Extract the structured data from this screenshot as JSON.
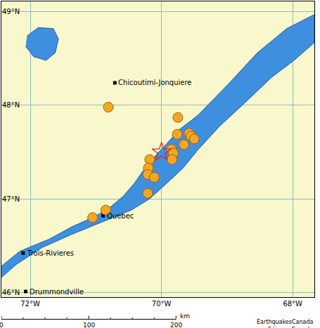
{
  "chart_data": {
    "type": "map",
    "xlim": [
      -72.44,
      -67.67
    ],
    "ylim": [
      45.95,
      49.11
    ],
    "xticks": [
      {
        "value": -72,
        "label": "72°W"
      },
      {
        "value": -70,
        "label": "70°W"
      },
      {
        "value": -68,
        "label": "68°W"
      }
    ],
    "yticks": [
      {
        "value": 46,
        "label": "46°N"
      },
      {
        "value": 47,
        "label": "47°N"
      },
      {
        "value": 48,
        "label": "48°N"
      },
      {
        "value": 49,
        "label": "49°N"
      }
    ],
    "grid": true,
    "water": [
      {
        "color": "#3f8fdf",
        "lon": [
          -72.44,
          -72.16,
          -71.71,
          -71.37,
          -71.02,
          -70.8,
          -70.58,
          -70.41,
          -70.29,
          -70.12,
          -69.92,
          -69.73,
          -69.45,
          -68.99,
          -68.54,
          -68.09,
          -67.67,
          -67.67,
          -67.98,
          -68.32,
          -68.77,
          -69.11,
          -69.45,
          -69.67,
          -69.9,
          -70.18,
          -70.46,
          -70.75,
          -71.02,
          -71.37,
          -71.82,
          -72.21,
          -72.44
        ],
        "lat": [
          46.28,
          46.44,
          46.57,
          46.7,
          46.81,
          46.9,
          47.03,
          47.17,
          47.29,
          47.44,
          47.59,
          47.74,
          47.89,
          48.22,
          48.56,
          48.82,
          48.97,
          48.67,
          48.48,
          48.3,
          48.0,
          47.78,
          47.52,
          47.33,
          47.18,
          47.0,
          46.88,
          46.8,
          46.72,
          46.62,
          46.48,
          46.3,
          46.16
        ]
      },
      {
        "color": "#3f8fdf",
        "lon": [
          -72.05,
          -71.88,
          -71.65,
          -71.57,
          -71.62,
          -71.76,
          -71.95,
          -72.07
        ],
        "lat": [
          48.74,
          48.83,
          48.82,
          48.71,
          48.56,
          48.48,
          48.52,
          48.63
        ]
      }
    ],
    "earthquakes": {
      "color": "#f5a623",
      "marker": "circle",
      "lon": [
        -70.81,
        -69.75,
        -69.76,
        -69.58,
        -69.55,
        -69.5,
        -69.66,
        -69.85,
        -69.82,
        -69.84,
        -70.18,
        -70.2,
        -70.21,
        -70.11,
        -70.21,
        -70.85,
        -71.05
      ],
      "lat": [
        47.98,
        47.87,
        47.69,
        47.7,
        47.67,
        47.64,
        47.58,
        47.53,
        47.49,
        47.42,
        47.42,
        47.33,
        47.26,
        47.23,
        47.06,
        46.88,
        46.8
      ]
    },
    "epicenter": {
      "color": "#e02020",
      "marker": "star-open",
      "lon": -70.0,
      "lat": 47.5
    },
    "cities": [
      {
        "label": "Chicoutimi-Jonquiere",
        "lon": -70.71,
        "lat": 48.24
      },
      {
        "label": "Quebec",
        "lon": -70.89,
        "lat": 46.82
      },
      {
        "label": "Trois-Rivieres",
        "lon": -72.11,
        "lat": 46.42
      },
      {
        "label": "Drummondville",
        "lon": -72.07,
        "lat": 46.01
      }
    ],
    "scale_bar": {
      "ticks": [
        0,
        100,
        200
      ],
      "unit": "km"
    },
    "credits": [
      "EarthquakesCanada",
      "SéismesCanada"
    ]
  }
}
